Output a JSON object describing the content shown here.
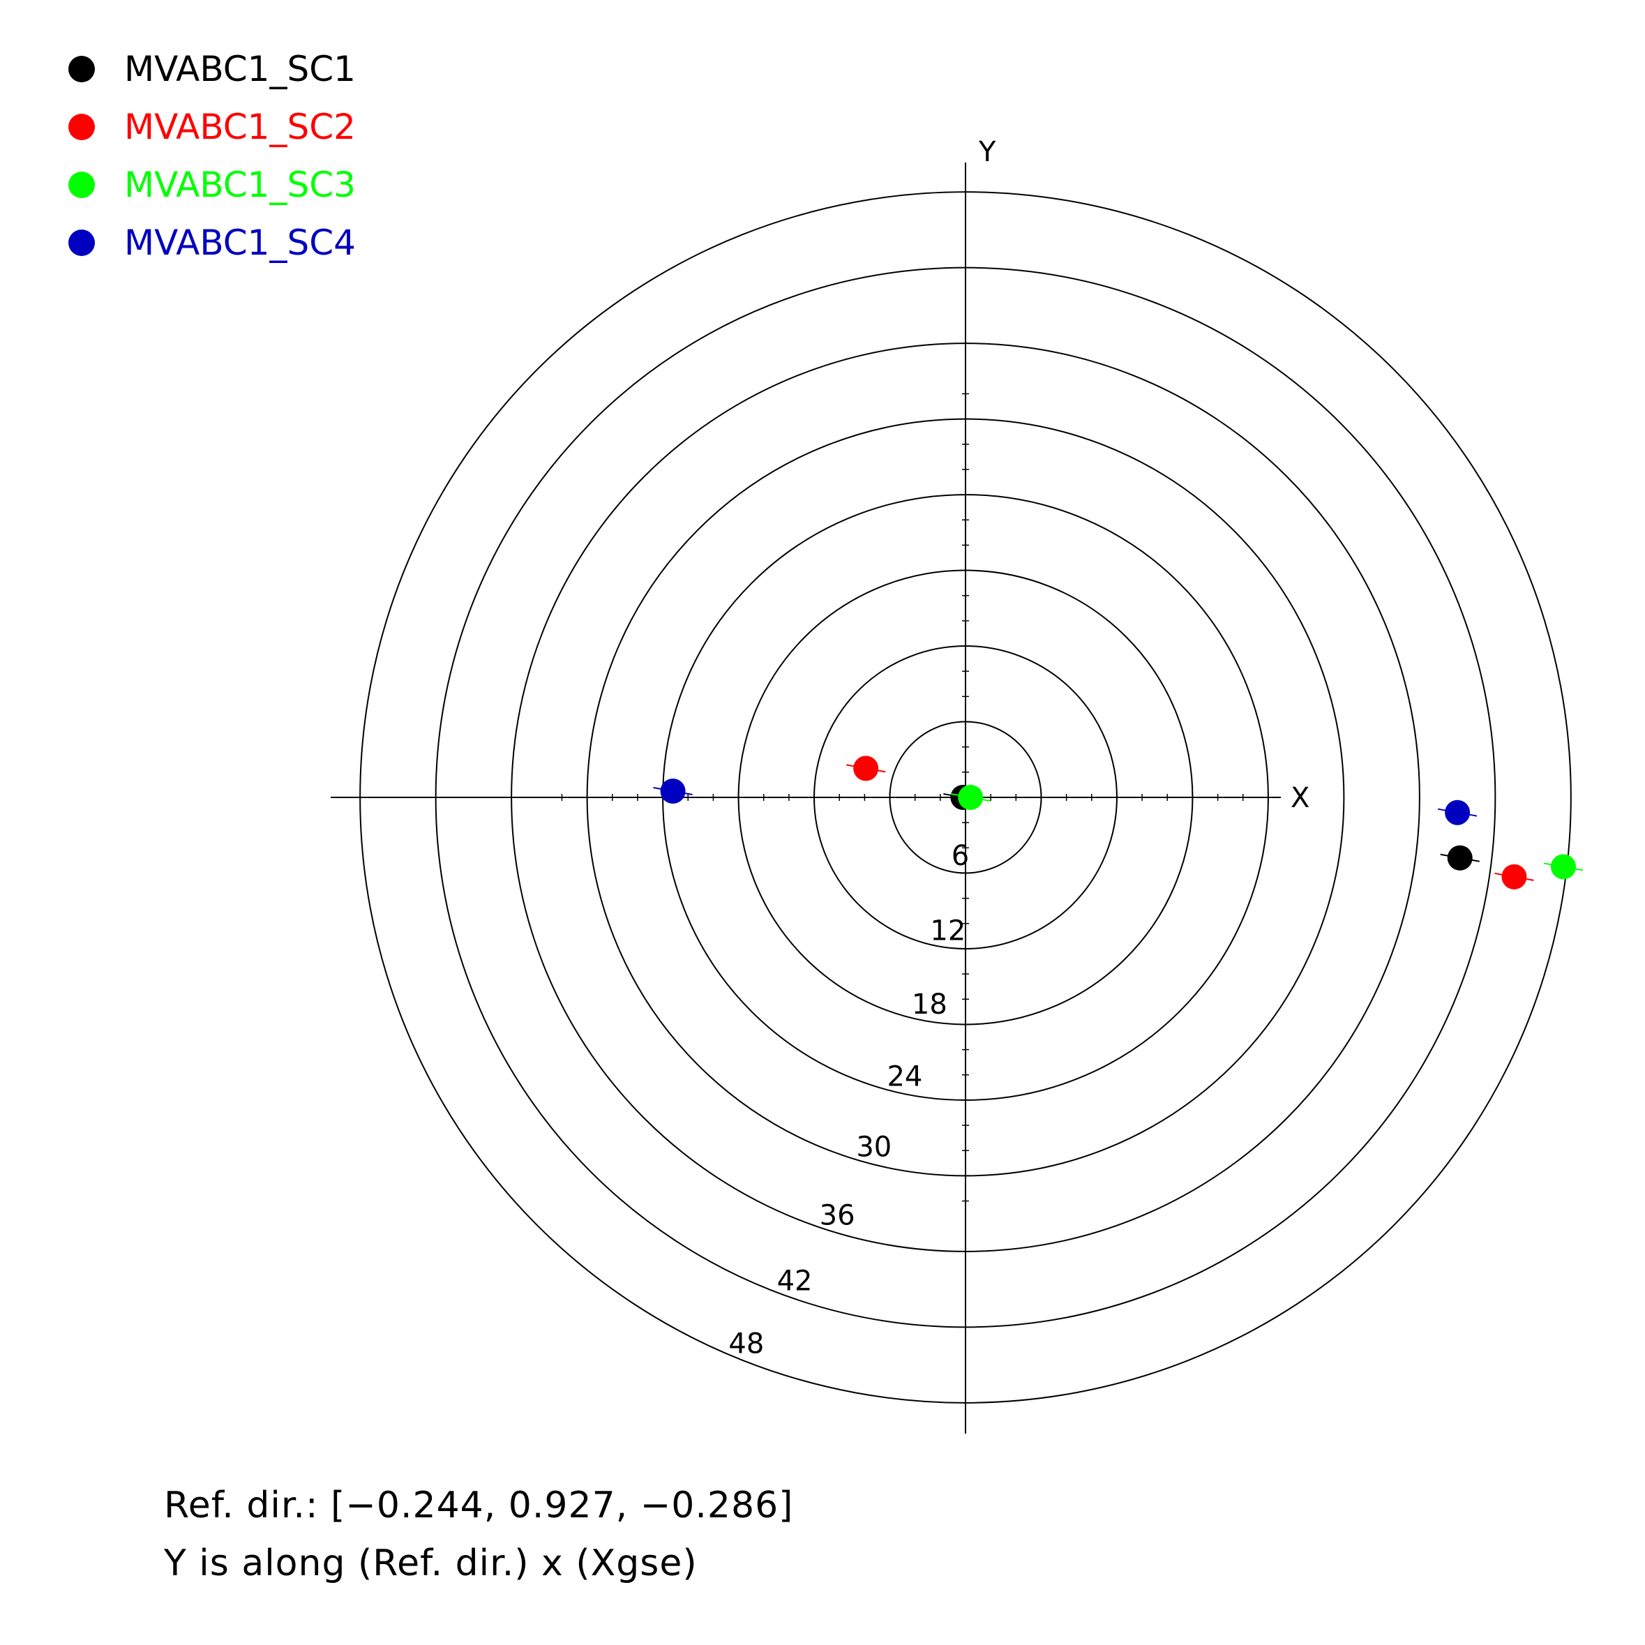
{
  "chart_data": {
    "type": "scatter",
    "subtype": "polar",
    "title": "",
    "xlabel": "X",
    "ylabel": "Y",
    "grid": true,
    "legend_position": "top-left",
    "ring_step": 6,
    "ring_count": 8,
    "ring_labels": [
      "6",
      "12",
      "18",
      "24",
      "30",
      "36",
      "42",
      "48"
    ],
    "radial_max": 48,
    "series": [
      {
        "name": "MVABC1_SC1",
        "color": "#000000",
        "points": [
          {
            "x": -0.2,
            "y": 0.0
          },
          {
            "x": 39.2,
            "y": -4.8
          }
        ]
      },
      {
        "name": "MVABC1_SC2",
        "color": "#ff0000",
        "points": [
          {
            "x": -7.9,
            "y": 2.3
          },
          {
            "x": 43.5,
            "y": -6.3
          }
        ]
      },
      {
        "name": "MVABC1_SC3",
        "color": "#00ff00",
        "points": [
          {
            "x": 0.4,
            "y": 0.0
          },
          {
            "x": 47.4,
            "y": -5.5
          }
        ]
      },
      {
        "name": "MVABC1_SC4",
        "color": "#0000c0",
        "points": [
          {
            "x": -23.2,
            "y": 0.5
          },
          {
            "x": 39.0,
            "y": -1.2
          }
        ]
      }
    ]
  },
  "footer": {
    "line1": "Ref. dir.: [−0.244, 0.927, −0.286]",
    "line2": "Y is along (Ref. dir.) x (Xgse)"
  }
}
